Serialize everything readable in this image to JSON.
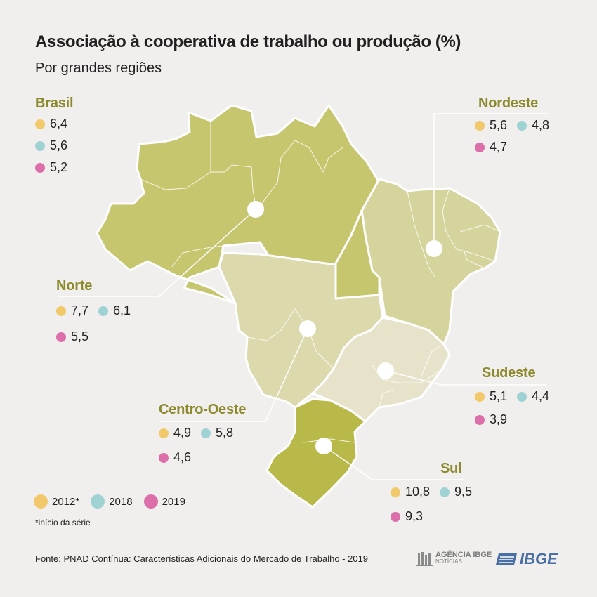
{
  "title": "Associação à cooperativa de trabalho ou produção (%)",
  "subtitle": "Por grandes regiões",
  "regions": {
    "brasil": {
      "name": "Brasil",
      "v2012": "6,4",
      "v2018": "5,6",
      "v2019": "5,2"
    },
    "norte": {
      "name": "Norte",
      "v2012": "7,7",
      "v2018": "6,1",
      "v2019": "5,5"
    },
    "nordeste": {
      "name": "Nordeste",
      "v2012": "5,6",
      "v2018": "4,8",
      "v2019": "4,7"
    },
    "centrooeste": {
      "name": "Centro-Oeste",
      "v2012": "4,9",
      "v2018": "5,8",
      "v2019": "4,6"
    },
    "sudeste": {
      "name": "Sudeste",
      "v2012": "5,1",
      "v2018": "4,4",
      "v2019": "3,9"
    },
    "sul": {
      "name": "Sul",
      "v2012": "10,8",
      "v2018": "9,5",
      "v2019": "9,3"
    }
  },
  "legend": {
    "y2012": "2012*",
    "y2018": "2018",
    "y2019": "2019"
  },
  "footnote": "*início da série",
  "source": "Fonte: PNAD Contínua: Características Adicionais do Mercado de Trabalho - 2019",
  "logos": {
    "agencia_line1": "AGÊNCIA IBGE",
    "agencia_line2": "NOTÍCIAS",
    "ibge": "IBGE"
  },
  "colors": {
    "norte": "#c5c66e",
    "nordeste": "#d4d49c",
    "centrooeste": "#dcd9ad",
    "sudeste": "#e7e3cb",
    "sul": "#b8b948",
    "region_label": "#8c8a2c",
    "y2012": "#f1c96b",
    "y2018": "#9fd2d3",
    "y2019": "#dc6fa9"
  }
}
